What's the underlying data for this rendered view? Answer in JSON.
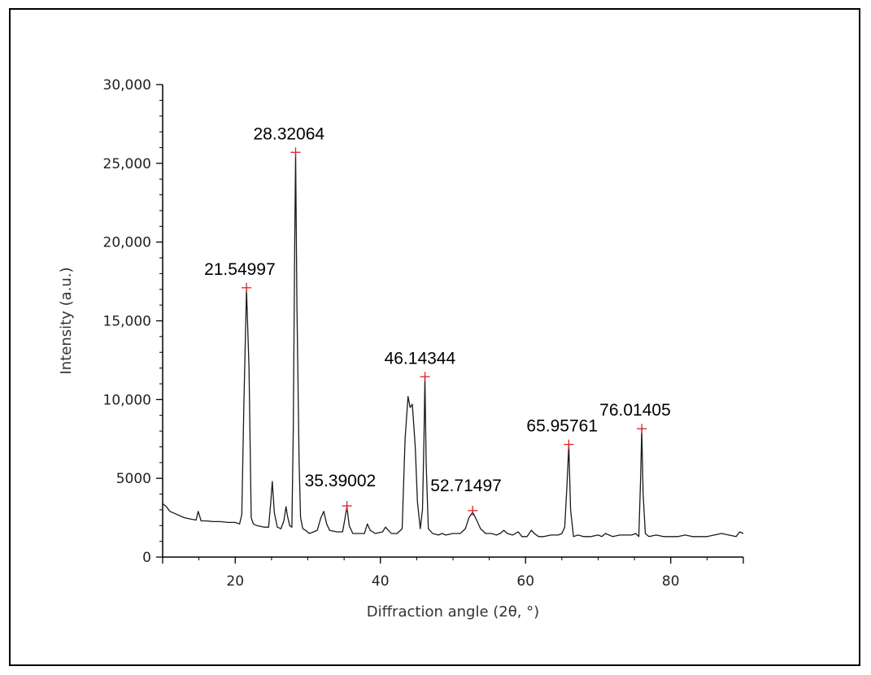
{
  "chart_data": {
    "type": "line",
    "title": "",
    "xlabel": "Diffraction angle (2θ, °)",
    "ylabel": "Intensity (a.u.)",
    "xlim": [
      10,
      90
    ],
    "ylim": [
      0,
      30000
    ],
    "x_ticks": [
      20,
      40,
      60,
      80
    ],
    "x_tick_labels": [
      "20",
      "40",
      "60",
      "80"
    ],
    "y_ticks": [
      0,
      5000,
      10000,
      15000,
      20000,
      25000,
      30000
    ],
    "y_tick_labels": [
      "0",
      "5000",
      "10,000",
      "15,000",
      "20,000",
      "25,000",
      "30,000"
    ],
    "grid": false,
    "line_color": "#1a1a1a",
    "marker_color": "#e02020",
    "series": [
      {
        "x": [
          10.0,
          10.5,
          11.0,
          12.0,
          13.0,
          14.0,
          14.6,
          14.9,
          15.3,
          16.0,
          17.0,
          18.0,
          19.0,
          20.0,
          20.6,
          20.9,
          21.2,
          21.55,
          21.9,
          22.2,
          22.5,
          23.0,
          24.0,
          24.6,
          24.9,
          25.1,
          25.4,
          25.8,
          26.3,
          26.7,
          27.0,
          27.2,
          27.5,
          27.8,
          28.0,
          28.2,
          28.32,
          28.5,
          28.8,
          29.0,
          29.3,
          29.7,
          30.2,
          30.8,
          31.3,
          31.8,
          32.2,
          32.6,
          33.0,
          34.0,
          34.8,
          35.1,
          35.39,
          35.7,
          36.2,
          37.0,
          37.8,
          38.2,
          38.6,
          39.3,
          40.3,
          40.7,
          41.1,
          41.5,
          42.3,
          43.0,
          43.4,
          43.8,
          44.1,
          44.4,
          44.8,
          45.1,
          45.5,
          45.8,
          46.0,
          46.14,
          46.3,
          46.6,
          47.2,
          48.0,
          48.5,
          49.0,
          50.0,
          51.0,
          51.7,
          52.2,
          52.71,
          53.2,
          53.8,
          54.5,
          55.3,
          56.0,
          56.5,
          57.0,
          57.5,
          58.2,
          59.0,
          59.5,
          60.2,
          60.8,
          61.2,
          61.8,
          62.5,
          63.5,
          64.5,
          65.0,
          65.4,
          65.7,
          65.96,
          66.2,
          66.6,
          67.2,
          68.0,
          69.0,
          70.0,
          70.5,
          71.0,
          72.0,
          73.0,
          74.0,
          74.6,
          75.2,
          75.6,
          75.85,
          76.01,
          76.2,
          76.5,
          77.0,
          78.0,
          79.0,
          80.0,
          81.0,
          82.0,
          83.0,
          84.0,
          85.0,
          86.0,
          87.0,
          88.0,
          89.0,
          89.5,
          90.0
        ],
        "y": [
          3400,
          3200,
          2900,
          2700,
          2500,
          2400,
          2350,
          2900,
          2300,
          2300,
          2250,
          2250,
          2200,
          2200,
          2100,
          2700,
          10000,
          17000,
          12000,
          2500,
          2100,
          2000,
          1900,
          1900,
          3500,
          4800,
          2800,
          1900,
          1800,
          2300,
          3200,
          2600,
          2000,
          1900,
          8000,
          20000,
          25600,
          16000,
          6000,
          2500,
          1800,
          1700,
          1500,
          1600,
          1700,
          2500,
          2900,
          2100,
          1700,
          1600,
          1600,
          2400,
          3200,
          2000,
          1500,
          1500,
          1500,
          2100,
          1700,
          1500,
          1600,
          1900,
          1700,
          1500,
          1500,
          1800,
          7500,
          10200,
          9500,
          9700,
          7000,
          3500,
          1800,
          3000,
          7500,
          11400,
          6000,
          1800,
          1500,
          1400,
          1500,
          1400,
          1500,
          1500,
          1800,
          2500,
          2850,
          2400,
          1800,
          1500,
          1500,
          1400,
          1500,
          1700,
          1500,
          1400,
          1600,
          1300,
          1300,
          1700,
          1500,
          1300,
          1300,
          1400,
          1400,
          1500,
          1900,
          4500,
          7100,
          3000,
          1300,
          1400,
          1300,
          1300,
          1400,
          1300,
          1500,
          1300,
          1400,
          1400,
          1400,
          1500,
          1300,
          5000,
          8100,
          4000,
          1500,
          1300,
          1400,
          1300,
          1300,
          1300,
          1400,
          1300,
          1300,
          1300,
          1400,
          1500,
          1400,
          1300,
          1600,
          1500
        ]
      }
    ],
    "annotations": [
      {
        "x": 21.54997,
        "y": 17100,
        "label": "21.54997"
      },
      {
        "x": 28.32064,
        "y": 25700,
        "label": "28.32064"
      },
      {
        "x": 35.39002,
        "y": 3250,
        "label": "35.39002"
      },
      {
        "x": 46.14344,
        "y": 11450,
        "label": "46.14344"
      },
      {
        "x": 52.71497,
        "y": 2950,
        "label": "52.71497"
      },
      {
        "x": 65.95761,
        "y": 7150,
        "label": "65.95761"
      },
      {
        "x": 76.01405,
        "y": 8150,
        "label": "76.01405"
      }
    ]
  }
}
